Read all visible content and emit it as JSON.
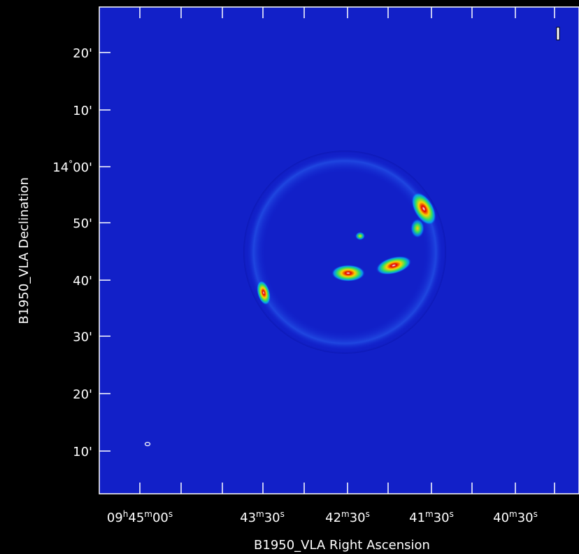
{
  "axes": {
    "x_label": "B1950_VLA Right Ascension",
    "y_label": "B1950_VLA Declination",
    "x_ticks": [
      "09h45m00s",
      "43m30s",
      "42m30s",
      "41m30s",
      "40m30s"
    ],
    "y_ticks": [
      "20'",
      "10'",
      "14°00'",
      "50'",
      "40'",
      "30'",
      "20'",
      "10'"
    ]
  }
}
